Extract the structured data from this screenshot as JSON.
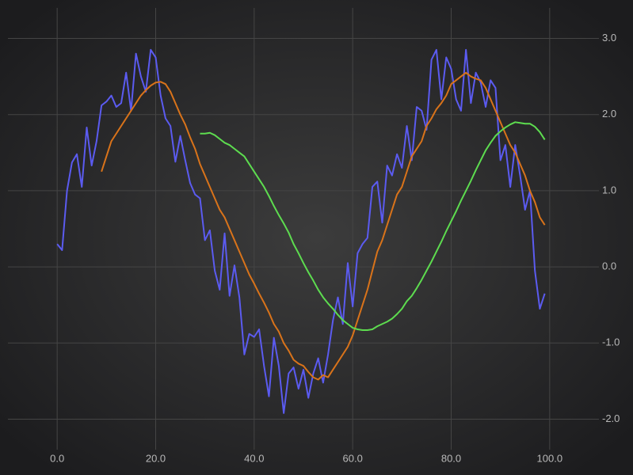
{
  "chart_data": {
    "type": "line",
    "x": [
      0,
      1,
      2,
      3,
      4,
      5,
      6,
      7,
      8,
      9,
      10,
      11,
      12,
      13,
      14,
      15,
      16,
      17,
      18,
      19,
      20,
      21,
      22,
      23,
      24,
      25,
      26,
      27,
      28,
      29,
      30,
      31,
      32,
      33,
      34,
      35,
      36,
      37,
      38,
      39,
      40,
      41,
      42,
      43,
      44,
      45,
      46,
      47,
      48,
      49,
      50,
      51,
      52,
      53,
      54,
      55,
      56,
      57,
      58,
      59,
      60,
      61,
      62,
      63,
      64,
      65,
      66,
      67,
      68,
      69,
      70,
      71,
      72,
      73,
      74,
      75,
      76,
      77,
      78,
      79,
      80,
      81,
      82,
      83,
      84,
      85,
      86,
      87,
      88,
      89,
      90,
      91,
      92,
      93,
      94,
      95,
      96,
      97,
      98,
      99
    ],
    "series": [
      {
        "color": "#5b5bf0",
        "values": [
          0.3,
          0.22,
          1.0,
          1.37,
          1.48,
          1.05,
          1.83,
          1.33,
          1.65,
          2.12,
          2.17,
          2.25,
          2.1,
          2.15,
          2.55,
          2.05,
          2.8,
          2.5,
          2.3,
          2.85,
          2.75,
          2.25,
          1.95,
          1.85,
          1.38,
          1.72,
          1.4,
          1.1,
          0.95,
          0.9,
          0.35,
          0.48,
          -0.05,
          -0.3,
          0.44,
          -0.38,
          0.02,
          -0.4,
          -1.15,
          -0.88,
          -0.92,
          -0.82,
          -1.3,
          -1.7,
          -0.93,
          -1.3,
          -1.92,
          -1.4,
          -1.32,
          -1.6,
          -1.35,
          -1.72,
          -1.4,
          -1.2,
          -1.52,
          -1.15,
          -0.7,
          -0.4,
          -0.75,
          0.05,
          -0.52,
          0.18,
          0.3,
          0.38,
          1.05,
          1.12,
          0.58,
          1.33,
          1.2,
          1.48,
          1.3,
          1.85,
          1.4,
          2.1,
          2.05,
          1.8,
          2.72,
          2.85,
          2.2,
          2.75,
          2.6,
          2.2,
          2.05,
          2.85,
          2.15,
          2.55,
          2.42,
          2.1,
          2.45,
          2.35,
          1.4,
          1.6,
          1.05,
          1.6,
          1.2,
          0.75,
          1.0,
          -0.05,
          -0.55,
          -0.35
        ]
      },
      {
        "color": "#d9731a",
        "values": [
          null,
          null,
          null,
          null,
          null,
          null,
          null,
          null,
          null,
          1.25,
          1.45,
          1.65,
          1.75,
          1.85,
          1.95,
          2.05,
          2.15,
          2.25,
          2.32,
          2.38,
          2.42,
          2.43,
          2.4,
          2.3,
          2.15,
          2.0,
          1.87,
          1.7,
          1.55,
          1.35,
          1.2,
          1.05,
          0.9,
          0.75,
          0.65,
          0.5,
          0.35,
          0.2,
          0.05,
          -0.1,
          -0.22,
          -0.35,
          -0.47,
          -0.6,
          -0.75,
          -0.85,
          -1.0,
          -1.1,
          -1.22,
          -1.27,
          -1.3,
          -1.38,
          -1.45,
          -1.48,
          -1.42,
          -1.45,
          -1.35,
          -1.25,
          -1.15,
          -1.05,
          -0.9,
          -0.7,
          -0.5,
          -0.3,
          -0.05,
          0.2,
          0.35,
          0.55,
          0.75,
          0.95,
          1.05,
          1.25,
          1.45,
          1.55,
          1.65,
          1.85,
          1.95,
          2.07,
          2.15,
          2.25,
          2.4,
          2.45,
          2.5,
          2.55,
          2.5,
          2.47,
          2.45,
          2.35,
          2.2,
          2.05,
          1.9,
          1.75,
          1.6,
          1.5,
          1.35,
          1.2,
          1.0,
          0.85,
          0.65,
          0.55
        ]
      },
      {
        "color": "#5ddc4f",
        "values": [
          null,
          null,
          null,
          null,
          null,
          null,
          null,
          null,
          null,
          null,
          null,
          null,
          null,
          null,
          null,
          null,
          null,
          null,
          null,
          null,
          null,
          null,
          null,
          null,
          null,
          null,
          null,
          null,
          null,
          1.75,
          1.75,
          1.76,
          1.73,
          1.68,
          1.63,
          1.6,
          1.55,
          1.5,
          1.45,
          1.35,
          1.25,
          1.15,
          1.05,
          0.93,
          0.8,
          0.68,
          0.57,
          0.45,
          0.3,
          0.18,
          0.05,
          -0.07,
          -0.18,
          -0.3,
          -0.4,
          -0.48,
          -0.55,
          -0.63,
          -0.7,
          -0.75,
          -0.8,
          -0.82,
          -0.83,
          -0.83,
          -0.82,
          -0.78,
          -0.75,
          -0.72,
          -0.68,
          -0.62,
          -0.55,
          -0.45,
          -0.38,
          -0.28,
          -0.17,
          -0.05,
          0.07,
          0.2,
          0.33,
          0.47,
          0.6,
          0.73,
          0.87,
          1.0,
          1.13,
          1.27,
          1.4,
          1.53,
          1.63,
          1.72,
          1.78,
          1.83,
          1.87,
          1.9,
          1.89,
          1.88,
          1.88,
          1.84,
          1.77,
          1.67
        ]
      }
    ],
    "xlim": [
      -10,
      110
    ],
    "xticks": [
      {
        "value": 0,
        "label": "0.0"
      },
      {
        "value": 20,
        "label": "20.0"
      },
      {
        "value": 40,
        "label": "40.0"
      },
      {
        "value": 60,
        "label": "60.0"
      },
      {
        "value": 80,
        "label": "80.0"
      },
      {
        "value": 100,
        "label": "100.0"
      }
    ],
    "ylim": [
      -2.4,
      3.4
    ],
    "yticks": [
      {
        "value": -2,
        "label": "-2.0"
      },
      {
        "value": -1,
        "label": "-1.0"
      },
      {
        "value": 0,
        "label": "0.0"
      },
      {
        "value": 1,
        "label": "1.0"
      },
      {
        "value": 2,
        "label": "2.0"
      },
      {
        "value": 3,
        "label": "3.0"
      }
    ],
    "grid": true
  }
}
